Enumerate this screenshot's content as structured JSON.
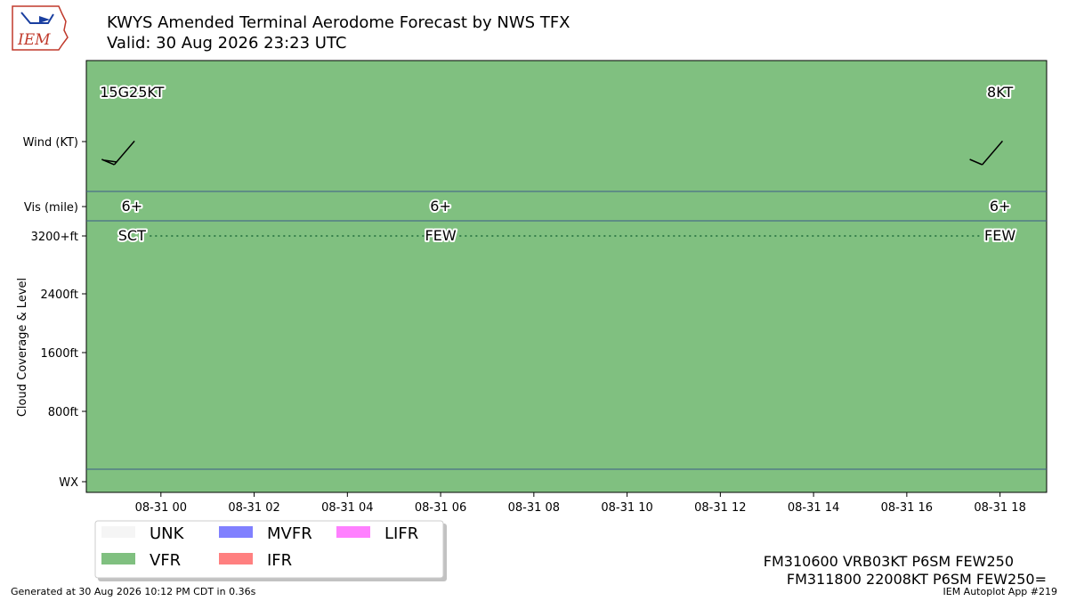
{
  "header": {
    "title": "KWYS Amended Terminal Aerodome Forecast by NWS TFX",
    "subtitle": "Valid: 30 Aug 2026 23:23 UTC",
    "logo_text": "IEM"
  },
  "chart_data": {
    "type": "timeline",
    "x_ticks": [
      "08-31 00",
      "08-31 02",
      "08-31 04",
      "08-31 06",
      "08-31 08",
      "08-31 10",
      "08-31 12",
      "08-31 14",
      "08-31 16",
      "08-31 18"
    ],
    "x_tick_hours": [
      0,
      2,
      4,
      6,
      8,
      10,
      12,
      14,
      16,
      18
    ],
    "xlim_hours": [
      -1.6,
      19.0
    ],
    "y_rows": [
      {
        "label": "Wind (KT)"
      },
      {
        "label": "Vis (mile)"
      },
      {
        "label": "3200+ft"
      },
      {
        "label": "2400ft"
      },
      {
        "label": "1600ft"
      },
      {
        "label": "800ft"
      },
      {
        "label": "WX"
      }
    ],
    "ylabel": "Cloud Coverage & Level",
    "category": "VFR",
    "forecasts": [
      {
        "hour": -0.62,
        "wind_label": "15G25KT",
        "wind_dir": 220,
        "wind_speed": 15,
        "gust": 25,
        "vis": "6+",
        "cloud": "SCT"
      },
      {
        "hour": 6.0,
        "wind_label": "",
        "vis": "6+",
        "cloud": "FEW"
      },
      {
        "hour": 18.0,
        "wind_label": "8KT",
        "wind_dir": 220,
        "wind_speed": 8,
        "vis": "6+",
        "cloud": "FEW"
      }
    ],
    "legend": {
      "placement": "bottom-left",
      "entries": [
        {
          "name": "UNK",
          "color": "#f5f5f5"
        },
        {
          "name": "VFR",
          "color": "#80c080"
        },
        {
          "name": "MVFR",
          "color": "#8080ff"
        },
        {
          "name": "IFR",
          "color": "#ff8080"
        },
        {
          "name": "LIFR",
          "color": "#ff80ff"
        }
      ]
    }
  },
  "taf_lines": [
    "FM310600 VRB03KT P6SM FEW250",
    "FM311800 22008KT P6SM FEW250="
  ],
  "footer": {
    "generated": "Generated at 30 Aug 2026 10:12 PM CDT in 0.36s",
    "app": "IEM Autoplot App #219"
  }
}
